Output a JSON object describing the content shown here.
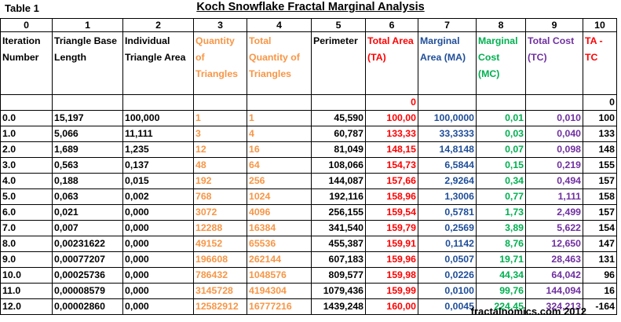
{
  "table_label": "Table 1",
  "title": "Koch Snowflake Fractal Marginal Analysis",
  "column_numbers": [
    "0",
    "1",
    "2",
    "3",
    "4",
    "5",
    "6",
    "7",
    "8",
    "9",
    "10"
  ],
  "headers": [
    "Iteration Number",
    "Triangle Base Length",
    "Individual Triangle Area",
    "Quantity of Triangles",
    "Total Quantity of Triangles",
    "Perimeter",
    "Total Area (TA)",
    "Marginal Area (MA)",
    "Marginal Cost (MC)",
    "Total Cost (TC)",
    "TA -TC"
  ],
  "zero_row": [
    "",
    "",
    "",
    "",
    "",
    "",
    "0",
    "",
    "",
    "",
    "0"
  ],
  "rows": [
    [
      "0.0",
      "15,197",
      "100,000",
      "1",
      "1",
      "45,590",
      "100,00",
      "100,0000",
      "0,01",
      "0,010",
      "100"
    ],
    [
      "1.0",
      "5,066",
      "11,111",
      "3",
      "4",
      "60,787",
      "133,33",
      "33,3333",
      "0,03",
      "0,040",
      "133"
    ],
    [
      "2.0",
      "1,689",
      "1,235",
      "12",
      "16",
      "81,049",
      "148,15",
      "14,8148",
      "0,07",
      "0,098",
      "148"
    ],
    [
      "3.0",
      "0,563",
      "0,137",
      "48",
      "64",
      "108,066",
      "154,73",
      "6,5844",
      "0,15",
      "0,219",
      "155"
    ],
    [
      "4.0",
      "0,188",
      "0,015",
      "192",
      "256",
      "144,087",
      "157,66",
      "2,9264",
      "0,34",
      "0,494",
      "157"
    ],
    [
      "5.0",
      "0,063",
      "0,002",
      "768",
      "1024",
      "192,116",
      "158,96",
      "1,3006",
      "0,77",
      "1,111",
      "158"
    ],
    [
      "6.0",
      "0,021",
      "0,000",
      "3072",
      "4096",
      "256,155",
      "159,54",
      "0,5781",
      "1,73",
      "2,499",
      "157"
    ],
    [
      "7.0",
      "0,007",
      "0,000",
      "12288",
      "16384",
      "341,540",
      "159,79",
      "0,2569",
      "3,89",
      "5,622",
      "154"
    ],
    [
      "8.0",
      "0,00231622",
      "0,000",
      "49152",
      "65536",
      "455,387",
      "159,91",
      "0,1142",
      "8,76",
      "12,650",
      "147"
    ],
    [
      "9.0",
      "0,00077207",
      "0,000",
      "196608",
      "262144",
      "607,183",
      "159,96",
      "0,0507",
      "19,71",
      "28,463",
      "131"
    ],
    [
      "10.0",
      "0,00025736",
      "0,000",
      "786432",
      "1048576",
      "809,577",
      "159,98",
      "0,0226",
      "44,34",
      "64,042",
      "96"
    ],
    [
      "11.0",
      "0,00008579",
      "0,000",
      "3145728",
      "4194304",
      "1079,436",
      "159,99",
      "0,0100",
      "99,76",
      "144,094",
      "16"
    ],
    [
      "12.0",
      "0,00002860",
      "0,000",
      "12582912",
      "16777216",
      "1439,248",
      "160,00",
      "0,0045",
      "224,45",
      "324,213",
      "-164"
    ]
  ],
  "footer": "fractalnomics.com 2012",
  "colors": {
    "orange": "#f79646",
    "red": "#ff0000",
    "blue": "#1f4e99",
    "green": "#00b050",
    "purple": "#7030a0"
  }
}
